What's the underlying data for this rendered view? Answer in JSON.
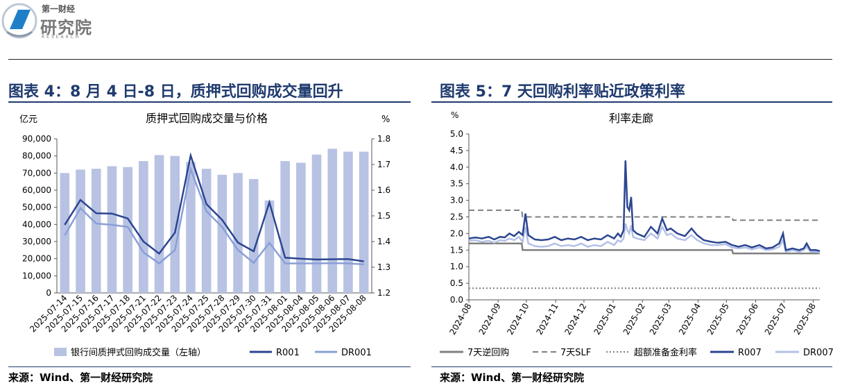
{
  "logo": {
    "line1": "第一财经",
    "line2": "研究院",
    "line3": "RESEARCH"
  },
  "left": {
    "panel_title": "图表 4：8 月 4 日-8 日，质押式回购成交量回升",
    "source": "来源：Wind、第一财经研究院",
    "chart_data": {
      "type": "bar",
      "title": "质押式回购成交量与价格",
      "ylabel_left": "亿元",
      "ylabel_right": "%",
      "ylim": [
        0,
        90000
      ],
      "ylim_right": [
        1.2,
        1.8
      ],
      "yticks_left": [
        "0",
        "10,000",
        "20,000",
        "30,000",
        "40,000",
        "50,000",
        "60,000",
        "70,000",
        "80,000",
        "90,000"
      ],
      "yticks_right": [
        "1.2",
        "1.3",
        "1.4",
        "1.5",
        "1.6",
        "1.7",
        "1.8"
      ],
      "categories": [
        "2025-07-14",
        "2025-07-15",
        "2025-07-16",
        "2025-07-17",
        "2025-07-18",
        "2025-07-21",
        "2025-07-22",
        "2025-07-23",
        "2025-07-24",
        "2025-07-25",
        "2025-07-28",
        "2025-07-29",
        "2025-07-30",
        "2025-07-31",
        "2025-08-01",
        "2025-08-04",
        "2025-08-05",
        "2025-08-06",
        "2025-08-07",
        "2025-08-08"
      ],
      "series": [
        {
          "name": "银行间质押式回购成交量（左轴）",
          "kind": "bar",
          "axis": "left",
          "color": "#b8c2e3",
          "values": [
            70000,
            72000,
            72500,
            74000,
            73500,
            77000,
            80500,
            80000,
            76500,
            72500,
            69000,
            70000,
            66500,
            54000,
            77000,
            76000,
            80800,
            84200,
            82500,
            82500
          ]
        },
        {
          "name": "R001",
          "kind": "line",
          "axis": "right",
          "color": "#2b4590",
          "values": [
            1.465,
            1.562,
            1.51,
            1.509,
            1.49,
            1.4,
            1.353,
            1.435,
            1.735,
            1.546,
            1.484,
            1.396,
            1.362,
            1.553,
            1.337,
            1.333,
            1.33,
            1.331,
            1.332,
            1.323
          ]
        },
        {
          "name": "DR001",
          "kind": "line",
          "axis": "right",
          "color": "#8a9fd6",
          "values": [
            1.424,
            1.53,
            1.47,
            1.465,
            1.457,
            1.358,
            1.315,
            1.367,
            1.682,
            1.518,
            1.456,
            1.367,
            1.317,
            1.395,
            1.315,
            1.315,
            1.315,
            1.316,
            1.315,
            1.311
          ]
        }
      ]
    }
  },
  "right": {
    "panel_title": "图表 5：7 天回购利率贴近政策利率",
    "source": "来源：Wind、第一财经研究院",
    "chart_data": {
      "type": "line",
      "title": "利率走廊",
      "ylabel": "%",
      "ylim": [
        0,
        5
      ],
      "yticks": [
        "0.0",
        "0.5",
        "1.0",
        "1.5",
        "2.0",
        "2.5",
        "3.0",
        "3.5",
        "4.0",
        "4.5",
        "5.0"
      ],
      "xlim": [
        "2024-08-01",
        "2025-08-08"
      ],
      "x_ticks": [
        "2024-08",
        "2024-09",
        "2024-10",
        "2024-11",
        "2024-12",
        "2025-01",
        "2025-02",
        "2025-03",
        "2025-04",
        "2025-05",
        "2025-06",
        "2025-07",
        "2025-08"
      ],
      "series": [
        {
          "name": "7天逆回购",
          "style": "solid",
          "color": "#7f7f7f",
          "points": [
            [
              "2024-08-01",
              1.7
            ],
            [
              "2024-09-26",
              1.7
            ],
            [
              "2024-09-27",
              1.5
            ],
            [
              "2025-05-07",
              1.5
            ],
            [
              "2025-05-08",
              1.4
            ],
            [
              "2025-08-08",
              1.4
            ]
          ]
        },
        {
          "name": "7天SLF",
          "style": "dashed",
          "color": "#7f7f7f",
          "points": [
            [
              "2024-08-01",
              2.7
            ],
            [
              "2024-09-26",
              2.7
            ],
            [
              "2024-09-27",
              2.5
            ],
            [
              "2025-05-07",
              2.5
            ],
            [
              "2025-05-08",
              2.4
            ],
            [
              "2025-08-08",
              2.4
            ]
          ]
        },
        {
          "name": "超额准备金利率",
          "style": "dotted",
          "color": "#7f7f7f",
          "points": [
            [
              "2024-08-01",
              0.35
            ],
            [
              "2025-08-08",
              0.35
            ]
          ]
        },
        {
          "name": "R007",
          "style": "solid",
          "color": "#2b4590",
          "points": [
            [
              "2024-08-01",
              1.85
            ],
            [
              "2024-08-08",
              1.88
            ],
            [
              "2024-08-15",
              1.85
            ],
            [
              "2024-08-22",
              1.9
            ],
            [
              "2024-08-28",
              1.82
            ],
            [
              "2024-09-03",
              1.9
            ],
            [
              "2024-09-08",
              1.88
            ],
            [
              "2024-09-13",
              2.0
            ],
            [
              "2024-09-18",
              1.92
            ],
            [
              "2024-09-23",
              2.05
            ],
            [
              "2024-09-27",
              1.95
            ],
            [
              "2024-09-30",
              2.6
            ],
            [
              "2024-10-03",
              1.95
            ],
            [
              "2024-10-10",
              1.82
            ],
            [
              "2024-10-17",
              1.8
            ],
            [
              "2024-10-24",
              1.82
            ],
            [
              "2024-10-31",
              1.9
            ],
            [
              "2024-11-07",
              1.8
            ],
            [
              "2024-11-14",
              1.85
            ],
            [
              "2024-11-21",
              1.82
            ],
            [
              "2024-11-28",
              1.9
            ],
            [
              "2024-12-05",
              1.8
            ],
            [
              "2024-12-12",
              1.85
            ],
            [
              "2024-12-19",
              1.82
            ],
            [
              "2024-12-26",
              1.95
            ],
            [
              "2025-01-02",
              1.85
            ],
            [
              "2025-01-06",
              2.0
            ],
            [
              "2025-01-09",
              1.9
            ],
            [
              "2025-01-12",
              2.1
            ],
            [
              "2025-01-14",
              4.2
            ],
            [
              "2025-01-16",
              2.8
            ],
            [
              "2025-01-18",
              2.7
            ],
            [
              "2025-01-20",
              3.1
            ],
            [
              "2025-01-22",
              2.1
            ],
            [
              "2025-01-26",
              2.0
            ],
            [
              "2025-02-03",
              1.9
            ],
            [
              "2025-02-10",
              2.2
            ],
            [
              "2025-02-17",
              2.0
            ],
            [
              "2025-02-22",
              2.45
            ],
            [
              "2025-02-27",
              2.1
            ],
            [
              "2025-03-03",
              2.15
            ],
            [
              "2025-03-10",
              2.0
            ],
            [
              "2025-03-18",
              1.92
            ],
            [
              "2025-03-25",
              2.15
            ],
            [
              "2025-03-31",
              1.95
            ],
            [
              "2025-04-07",
              1.8
            ],
            [
              "2025-04-15",
              1.75
            ],
            [
              "2025-04-22",
              1.72
            ],
            [
              "2025-04-30",
              1.75
            ],
            [
              "2025-05-07",
              1.65
            ],
            [
              "2025-05-14",
              1.6
            ],
            [
              "2025-05-21",
              1.65
            ],
            [
              "2025-05-28",
              1.58
            ],
            [
              "2025-06-05",
              1.65
            ],
            [
              "2025-06-12",
              1.55
            ],
            [
              "2025-06-19",
              1.58
            ],
            [
              "2025-06-26",
              1.7
            ],
            [
              "2025-06-30",
              2.0
            ],
            [
              "2025-07-03",
              1.5
            ],
            [
              "2025-07-10",
              1.55
            ],
            [
              "2025-07-17",
              1.5
            ],
            [
              "2025-07-22",
              1.55
            ],
            [
              "2025-07-25",
              1.7
            ],
            [
              "2025-07-29",
              1.5
            ],
            [
              "2025-08-04",
              1.5
            ],
            [
              "2025-08-08",
              1.47
            ]
          ]
        },
        {
          "name": "DR007",
          "style": "solid",
          "color": "#b3c0e6",
          "points": [
            [
              "2024-08-01",
              1.78
            ],
            [
              "2024-08-08",
              1.8
            ],
            [
              "2024-08-15",
              1.75
            ],
            [
              "2024-08-22",
              1.78
            ],
            [
              "2024-08-28",
              1.72
            ],
            [
              "2024-09-03",
              1.8
            ],
            [
              "2024-09-08",
              1.78
            ],
            [
              "2024-09-13",
              1.85
            ],
            [
              "2024-09-18",
              1.8
            ],
            [
              "2024-09-23",
              1.9
            ],
            [
              "2024-09-27",
              1.75
            ],
            [
              "2024-09-30",
              2.2
            ],
            [
              "2024-10-03",
              1.7
            ],
            [
              "2024-10-10",
              1.62
            ],
            [
              "2024-10-17",
              1.6
            ],
            [
              "2024-10-24",
              1.62
            ],
            [
              "2024-10-31",
              1.7
            ],
            [
              "2024-11-07",
              1.62
            ],
            [
              "2024-11-14",
              1.65
            ],
            [
              "2024-11-21",
              1.62
            ],
            [
              "2024-11-28",
              1.7
            ],
            [
              "2024-12-05",
              1.6
            ],
            [
              "2024-12-12",
              1.65
            ],
            [
              "2024-12-19",
              1.62
            ],
            [
              "2024-12-26",
              1.75
            ],
            [
              "2025-01-02",
              1.65
            ],
            [
              "2025-01-06",
              1.8
            ],
            [
              "2025-01-09",
              1.75
            ],
            [
              "2025-01-12",
              1.85
            ],
            [
              "2025-01-14",
              2.3
            ],
            [
              "2025-01-16",
              2.1
            ],
            [
              "2025-01-18",
              2.0
            ],
            [
              "2025-01-20",
              2.25
            ],
            [
              "2025-01-22",
              1.9
            ],
            [
              "2025-01-26",
              1.85
            ],
            [
              "2025-02-03",
              1.8
            ],
            [
              "2025-02-10",
              2.0
            ],
            [
              "2025-02-17",
              1.85
            ],
            [
              "2025-02-22",
              2.2
            ],
            [
              "2025-02-27",
              1.95
            ],
            [
              "2025-03-03",
              2.0
            ],
            [
              "2025-03-10",
              1.85
            ],
            [
              "2025-03-18",
              1.8
            ],
            [
              "2025-03-25",
              1.95
            ],
            [
              "2025-03-31",
              1.8
            ],
            [
              "2025-04-07",
              1.7
            ],
            [
              "2025-04-15",
              1.65
            ],
            [
              "2025-04-22",
              1.65
            ],
            [
              "2025-04-30",
              1.68
            ],
            [
              "2025-05-07",
              1.58
            ],
            [
              "2025-05-14",
              1.55
            ],
            [
              "2025-05-21",
              1.58
            ],
            [
              "2025-05-28",
              1.52
            ],
            [
              "2025-06-05",
              1.58
            ],
            [
              "2025-06-12",
              1.5
            ],
            [
              "2025-06-19",
              1.52
            ],
            [
              "2025-06-26",
              1.6
            ],
            [
              "2025-06-30",
              1.8
            ],
            [
              "2025-07-03",
              1.45
            ],
            [
              "2025-07-10",
              1.5
            ],
            [
              "2025-07-17",
              1.45
            ],
            [
              "2025-07-22",
              1.5
            ],
            [
              "2025-07-25",
              1.6
            ],
            [
              "2025-07-29",
              1.45
            ],
            [
              "2025-08-04",
              1.45
            ],
            [
              "2025-08-08",
              1.43
            ]
          ]
        }
      ]
    }
  }
}
